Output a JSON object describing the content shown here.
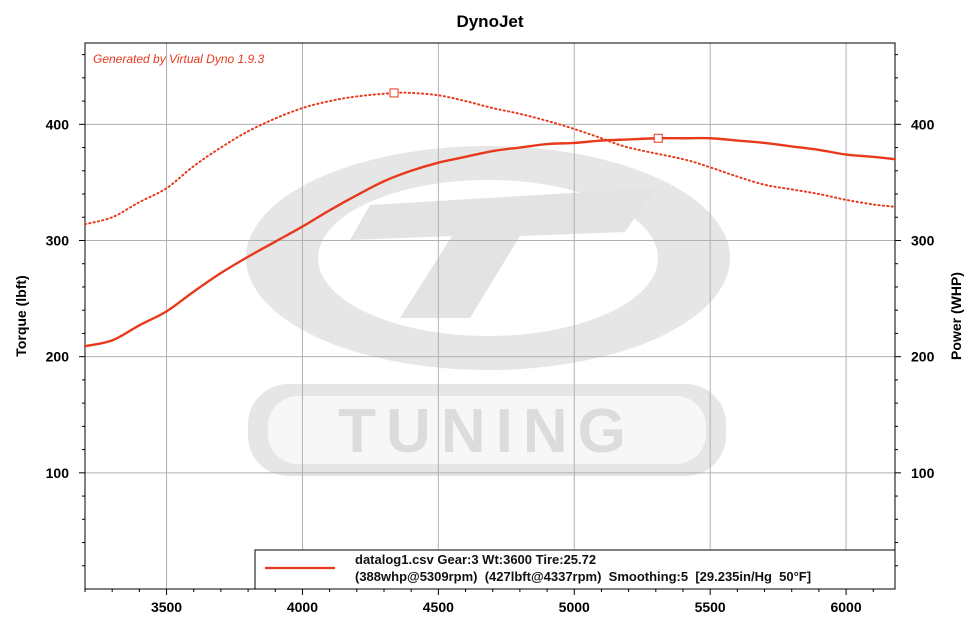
{
  "chart_data": {
    "type": "line",
    "title": "DynoJet",
    "watermark_note": "Generated by Virtual Dyno 1.9.3",
    "logo_text": "TUNING",
    "xlabel": "",
    "ylabel": "Torque (lbft)",
    "y2label": "Power (WHP)",
    "xlim": [
      3200,
      6180
    ],
    "ylim": [
      0,
      470
    ],
    "y2lim": [
      0,
      470
    ],
    "x_ticks": [
      3500,
      4000,
      4500,
      5000,
      5500,
      6000
    ],
    "x_tick_labels": [
      "3500",
      "4000",
      "4500",
      "5000",
      "5500",
      "6000"
    ],
    "y_ticks": [
      100,
      200,
      300,
      400
    ],
    "y_tick_labels": [
      "100",
      "200",
      "300",
      "400"
    ],
    "y2_ticks": [
      100,
      200,
      300,
      400
    ],
    "y2_tick_labels": [
      "100",
      "200",
      "300",
      "400"
    ],
    "grid": true,
    "series": [
      {
        "role": "power",
        "axis": "y2",
        "style": "solid",
        "color": "#e8391c",
        "x": [
          3200,
          3300,
          3400,
          3500,
          3600,
          3700,
          3800,
          3900,
          4000,
          4100,
          4200,
          4300,
          4400,
          4500,
          4600,
          4700,
          4800,
          4900,
          5000,
          5100,
          5200,
          5309,
          5400,
          5500,
          5600,
          5700,
          5800,
          5900,
          6000,
          6100,
          6180
        ],
        "values": [
          209,
          214,
          227,
          239,
          256,
          272,
          286,
          299,
          312,
          326,
          339,
          351,
          360,
          367,
          372,
          377,
          380,
          383,
          384,
          386,
          387,
          388,
          388,
          388,
          386,
          384,
          381,
          378,
          374,
          372,
          370
        ]
      },
      {
        "role": "torque",
        "axis": "y",
        "style": "dotted",
        "color": "#e8391c",
        "x": [
          3200,
          3300,
          3400,
          3500,
          3600,
          3700,
          3800,
          3900,
          4000,
          4100,
          4200,
          4337,
          4400,
          4500,
          4600,
          4700,
          4800,
          4900,
          5000,
          5100,
          5200,
          5309,
          5400,
          5500,
          5600,
          5700,
          5800,
          5900,
          6000,
          6100,
          6180
        ],
        "values": [
          314,
          320,
          333,
          345,
          364,
          380,
          394,
          405,
          414,
          420,
          424,
          427,
          427,
          425,
          420,
          414,
          409,
          403,
          396,
          388,
          380,
          388,
          370,
          363,
          355,
          348,
          344,
          340,
          335,
          331,
          329
        ]
      }
    ],
    "markers": [
      {
        "series": "torque",
        "x": 4337,
        "y": 427
      },
      {
        "series": "power",
        "x": 5309,
        "y": 388
      }
    ],
    "legend": {
      "placement": "bottom-right",
      "line1": "datalog1.csv Gear:3 Wt:3600 Tire:25.72",
      "line2": "(388whp@5309rpm)  (427lbft@4337rpm)  Smoothing:5  [29.235in/Hg  50°F]"
    },
    "colors": {
      "series": "#e8391c",
      "note": "#e8391c",
      "grid": "#b0b0b0",
      "axis": "#000000",
      "watermark": "#e3e3e3"
    }
  }
}
